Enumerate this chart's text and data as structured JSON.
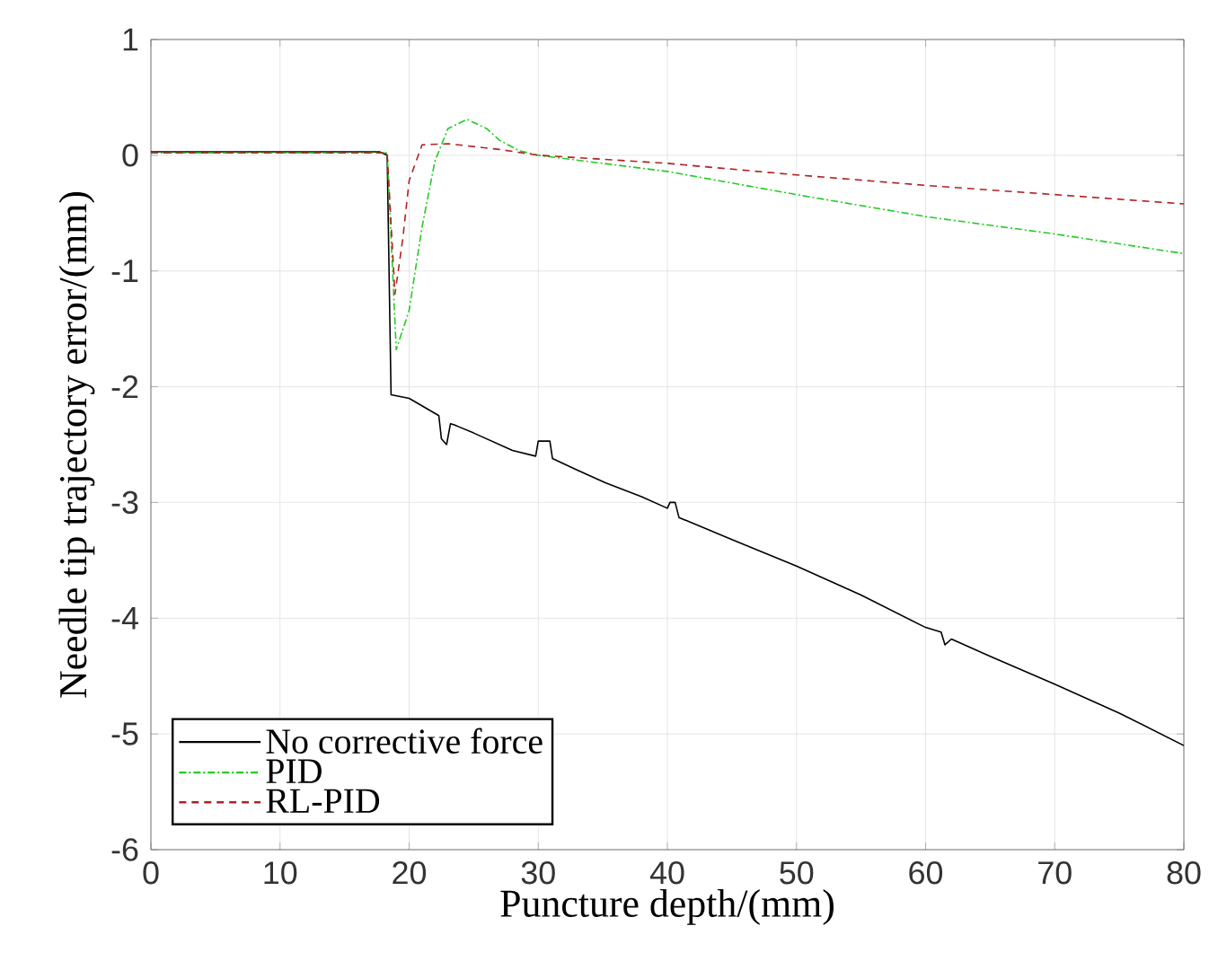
{
  "chart_data": {
    "type": "line",
    "xlabel": "Puncture depth/(mm)",
    "ylabel": "Needle tip trajectory error/(mm)",
    "xlim": [
      0,
      80
    ],
    "ylim": [
      -6,
      1
    ],
    "xticks": [
      0,
      10,
      20,
      30,
      40,
      50,
      60,
      70,
      80
    ],
    "yticks": [
      -6,
      -5,
      -4,
      -3,
      -2,
      -1,
      0,
      1
    ],
    "grid": true,
    "legend": "bottom left",
    "series": [
      {
        "name": "No corrective force",
        "color": "#000000",
        "line_style": "solid",
        "x": [
          0,
          5,
          10,
          15,
          17.7,
          18.3,
          18.6,
          20,
          22.3,
          22.5,
          22.9,
          23.2,
          23.5,
          25,
          28,
          29.8,
          30,
          30.9,
          31.1,
          33,
          35.2,
          38,
          40,
          40.2,
          40.6,
          40.9,
          45,
          50,
          55,
          60,
          61.2,
          61.5,
          62,
          65,
          70,
          75,
          80
        ],
        "values": [
          0.03,
          0.03,
          0.03,
          0.03,
          0.03,
          0.0,
          -2.07,
          -2.1,
          -2.25,
          -2.45,
          -2.5,
          -2.32,
          -2.33,
          -2.4,
          -2.55,
          -2.6,
          -2.47,
          -2.47,
          -2.62,
          -2.72,
          -2.83,
          -2.95,
          -3.05,
          -3.0,
          -3.0,
          -3.13,
          -3.32,
          -3.55,
          -3.8,
          -4.08,
          -4.12,
          -4.23,
          -4.18,
          -4.33,
          -4.57,
          -4.82,
          -5.1
        ]
      },
      {
        "name": "PID",
        "color": "#22cc22",
        "line_style": "dashdot",
        "x": [
          0,
          10,
          18.3,
          19,
          20,
          21,
          22,
          23,
          24.5,
          26,
          27,
          28.5,
          30,
          40,
          50,
          60,
          70,
          80
        ],
        "values": [
          0.02,
          0.02,
          0.02,
          -1.68,
          -1.34,
          -0.62,
          -0.05,
          0.23,
          0.31,
          0.23,
          0.13,
          0.04,
          0.0,
          -0.14,
          -0.34,
          -0.53,
          -0.68,
          -0.85
        ]
      },
      {
        "name": "RL-PID",
        "color": "#b22222",
        "line_style": "dashed",
        "x": [
          0,
          10,
          18.3,
          18.9,
          19.5,
          20,
          21,
          23,
          27,
          30,
          40,
          50,
          60,
          70,
          80
        ],
        "values": [
          0.02,
          0.02,
          0.02,
          -1.2,
          -0.73,
          -0.22,
          0.09,
          0.1,
          0.05,
          0.0,
          -0.07,
          -0.17,
          -0.26,
          -0.34,
          -0.42
        ]
      }
    ]
  }
}
